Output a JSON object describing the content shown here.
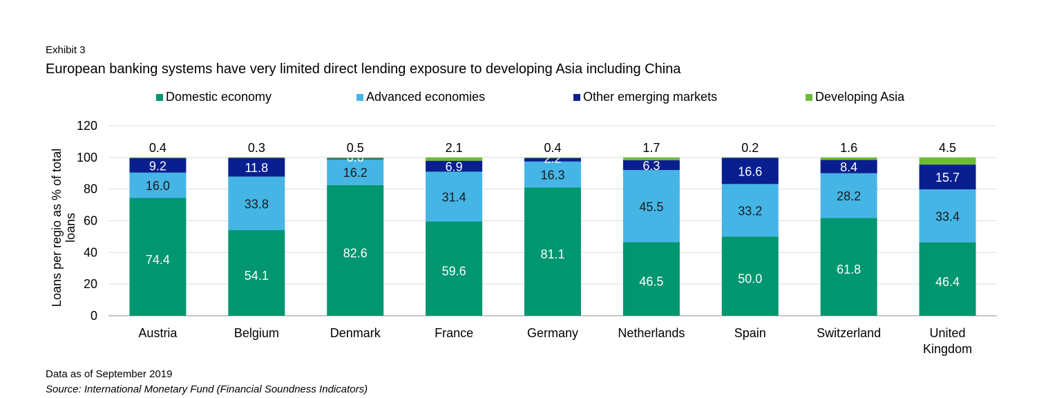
{
  "header": {
    "exhibit": "Exhibit 3",
    "title": "European banking systems have very limited direct lending exposure to developing Asia including China"
  },
  "footer": {
    "note": "Data as of September 2019",
    "source": "Source: International Monetary Fund (Financial Soundness Indicators)"
  },
  "chart_data": {
    "type": "bar",
    "stacked": true,
    "ylabel": "Loans per regio as % of total loans",
    "ylim": [
      0,
      120
    ],
    "yticks": [
      0,
      20,
      40,
      60,
      80,
      100,
      120
    ],
    "grid": true,
    "legend_position": "top",
    "categories": [
      "Austria",
      "Belgium",
      "Denmark",
      "France",
      "Germany",
      "Netherlands",
      "Spain",
      "Switzerland",
      "United Kingdom"
    ],
    "series": [
      {
        "name": "Domestic economy",
        "color": "#009670",
        "values": [
          74.4,
          54.1,
          82.6,
          59.6,
          81.1,
          46.5,
          50.0,
          61.8,
          46.4
        ]
      },
      {
        "name": "Advanced economies",
        "color": "#45b5e6",
        "values": [
          16.0,
          33.8,
          16.2,
          31.4,
          16.3,
          45.5,
          33.2,
          28.2,
          33.4
        ]
      },
      {
        "name": "Other emerging markets",
        "color": "#0a1f8f",
        "values": [
          9.2,
          11.8,
          0.6,
          6.9,
          2.2,
          6.3,
          16.6,
          8.4,
          15.7
        ]
      },
      {
        "name": "Developing Asia",
        "color": "#6cbd33",
        "values": [
          0.4,
          0.3,
          0.5,
          2.1,
          0.4,
          1.7,
          0.2,
          1.6,
          4.5
        ]
      }
    ]
  }
}
